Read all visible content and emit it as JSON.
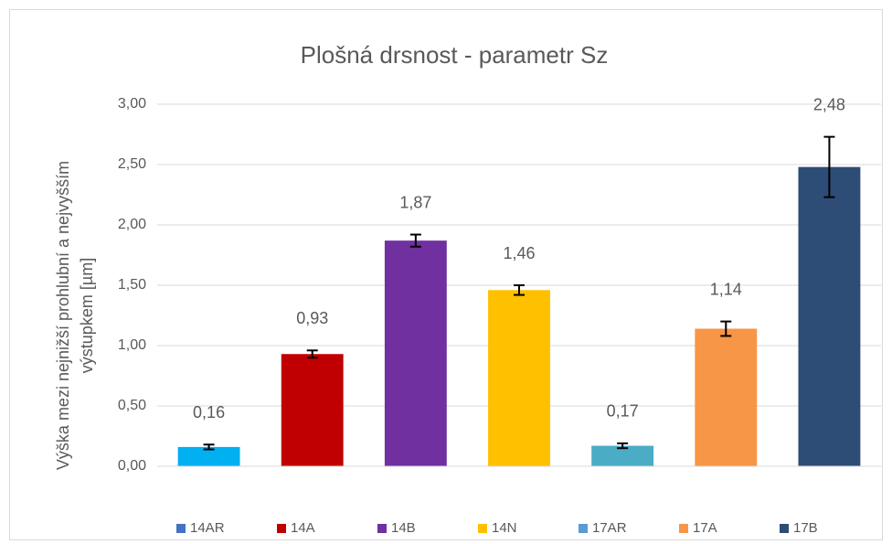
{
  "chart_data": {
    "type": "bar",
    "title": "Plošná drsnost - parametr Sz",
    "y_label": [
      "Výška mezi nejnižší prohlubní a nejvyšším",
      "výstupkem [µm]"
    ],
    "categories": [
      "14AR",
      "14A",
      "14B",
      "14N",
      "17AR",
      "17A",
      "17B"
    ],
    "values": [
      0.16,
      0.93,
      1.87,
      1.46,
      0.17,
      1.14,
      2.48
    ],
    "value_labels": [
      "0,16",
      "0,93",
      "1,87",
      "1,46",
      "0,17",
      "1,14",
      "2,48"
    ],
    "errors": [
      0.02,
      0.03,
      0.05,
      0.04,
      0.02,
      0.06,
      0.25
    ],
    "colors": [
      "#00b0f0",
      "#c00000",
      "#7030a0",
      "#ffc000",
      "#4bacc6",
      "#f79646",
      "#2e4d76"
    ],
    "legend_colors": [
      "#4472c4",
      "#c00000",
      "#7030a0",
      "#ffc000",
      "#5b9bd5",
      "#f79646",
      "#2e4d76"
    ],
    "ylim": [
      0,
      3
    ],
    "yticks": [
      {
        "value": 0,
        "label": "0,00"
      },
      {
        "value": 0.5,
        "label": "0,50"
      },
      {
        "value": 1,
        "label": "1,00"
      },
      {
        "value": 1.5,
        "label": "1,50"
      },
      {
        "value": 2,
        "label": "2,00"
      },
      {
        "value": 2.5,
        "label": "2,50"
      },
      {
        "value": 3,
        "label": "3,00"
      }
    ],
    "grid": true,
    "legend": "bottom"
  }
}
